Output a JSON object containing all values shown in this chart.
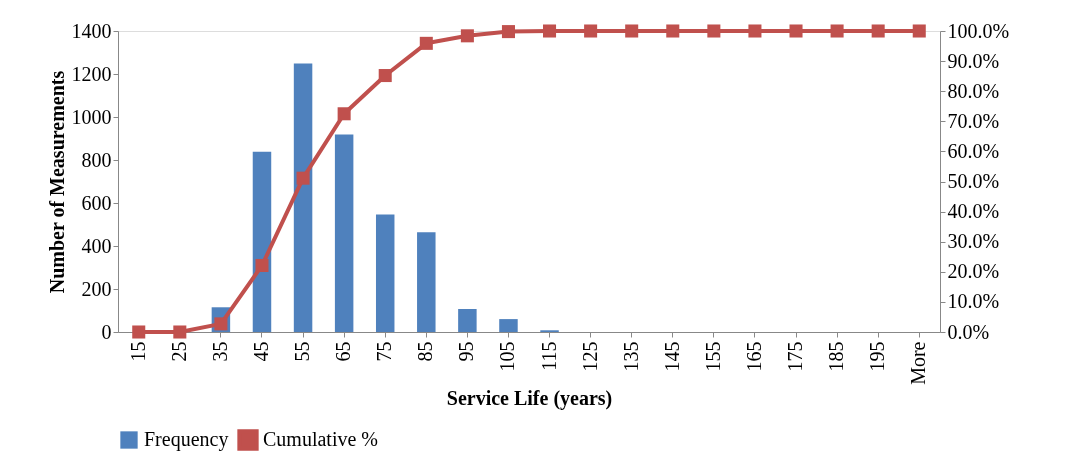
{
  "chart_data": {
    "type": "bar",
    "xlabel": "Service Life (years)",
    "ylabel": "Number of Measurements",
    "categories": [
      "15",
      "25",
      "35",
      "45",
      "55",
      "65",
      "75",
      "85",
      "95",
      "105",
      "115",
      "125",
      "135",
      "145",
      "155",
      "165",
      "175",
      "185",
      "195",
      "More"
    ],
    "series": [
      {
        "name": "Frequency",
        "color": "#4f81bd",
        "values": [
          0,
          0,
          115,
          838,
          1249,
          919,
          547,
          464,
          107,
          60,
          8,
          0,
          0,
          0,
          0,
          0,
          0,
          0,
          0,
          0
        ]
      },
      {
        "name": "Cumulative %",
        "type": "line",
        "axis": "y2",
        "color": "#c0504d",
        "marker": "square",
        "line_style": "solid",
        "values": [
          0,
          0,
          2.7,
          22.1,
          51.1,
          72.5,
          85.2,
          95.9,
          98.4,
          99.8,
          100,
          100,
          100,
          100,
          100,
          100,
          100,
          100,
          100,
          100
        ]
      }
    ],
    "ylim": [
      0,
      1400
    ],
    "yticks": [
      0,
      200,
      400,
      600,
      800,
      1000,
      1200,
      1400
    ],
    "y2lim": [
      0,
      100
    ],
    "y2ticks": [
      {
        "value": 0,
        "label": "0.0%"
      },
      {
        "value": 10,
        "label": "10.0%"
      },
      {
        "value": 20,
        "label": "20.0%"
      },
      {
        "value": 30,
        "label": "30.0%"
      },
      {
        "value": 40,
        "label": "40.0%"
      },
      {
        "value": 50,
        "label": "50.0%"
      },
      {
        "value": 60,
        "label": "60.0%"
      },
      {
        "value": 70,
        "label": "70.0%"
      },
      {
        "value": 80,
        "label": "80.0%"
      },
      {
        "value": 90,
        "label": "90.0%"
      },
      {
        "value": 100,
        "label": "100.0%"
      }
    ],
    "grid": false,
    "legend": "bottom"
  }
}
